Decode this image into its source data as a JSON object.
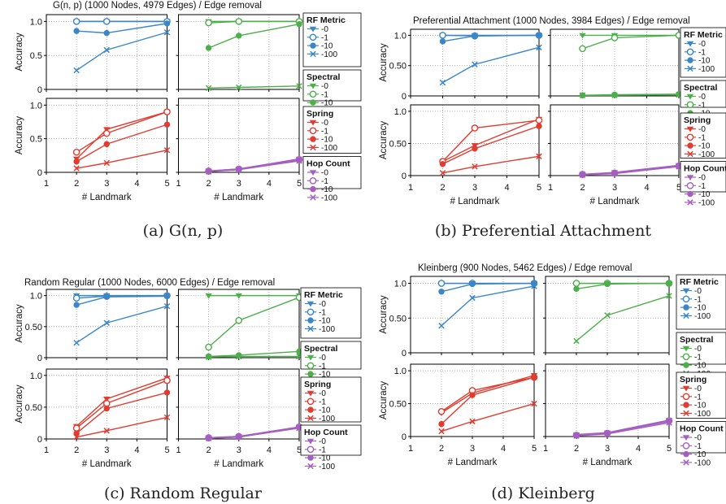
{
  "colors": {
    "rf": "#3a86c8",
    "spectral": "#4daf4a",
    "spring": "#e03c31",
    "hop": "#a55fc0",
    "grid": "#999999",
    "axis": "#000000"
  },
  "legend_groups": [
    {
      "title": "RF Metric",
      "color_key": "rf",
      "entries": [
        "-0",
        "-1",
        "-10",
        "-100"
      ]
    },
    {
      "title": "Spectral",
      "color_key": "spectral",
      "entries": [
        "-0",
        "-1",
        "-10",
        "-100"
      ]
    },
    {
      "title": "Spring",
      "color_key": "spring",
      "entries": [
        "-0",
        "-1",
        "-10",
        "-100"
      ]
    },
    {
      "title": "Hop Count",
      "color_key": "hop",
      "entries": [
        "-0",
        "-1",
        "-10",
        "-100"
      ]
    }
  ],
  "chart_data": [
    {
      "type": "line",
      "title": "G(n, p) (1000 Nodes, 4979 Edges) / Edge removal",
      "caption": "(a) G(n, p)",
      "xlabel": "# Landmark",
      "ylabel": "Accuracy",
      "xlim": [
        1,
        5
      ],
      "ylim": [
        0,
        1.1
      ],
      "xticks": [
        1,
        2,
        3,
        4,
        5
      ],
      "yticks": [
        "0",
        "0.5",
        "1.0"
      ],
      "x": [
        2,
        3,
        5
      ],
      "panels": {
        "rf": [
          [
            1.0,
            1.0,
            1.0
          ],
          [
            1.0,
            1.0,
            1.0
          ],
          [
            0.86,
            0.83,
            0.97
          ],
          [
            0.28,
            0.58,
            0.84
          ]
        ],
        "spectral": [
          [
            1.0,
            1.0,
            1.0
          ],
          [
            0.98,
            1.0,
            1.0
          ],
          [
            0.61,
            0.79,
            0.96
          ],
          [
            0.02,
            0.03,
            0.05
          ]
        ],
        "spring": [
          [
            0.2,
            0.64,
            0.9
          ],
          [
            0.3,
            0.58,
            0.9
          ],
          [
            0.16,
            0.42,
            0.71
          ],
          [
            0.06,
            0.14,
            0.33
          ]
        ],
        "hop": [
          [
            0.02,
            0.05,
            0.2
          ],
          [
            0.02,
            0.05,
            0.19
          ],
          [
            0.01,
            0.04,
            0.18
          ],
          [
            0.01,
            0.04,
            0.17
          ]
        ]
      }
    },
    {
      "type": "line",
      "title": "Preferential Attachment (1000 Nodes, 3984 Edges) / Edge removal",
      "caption": "(b) Preferential Attachment",
      "xlabel": "# Landmark",
      "ylabel": "Accuracy",
      "xlim": [
        1,
        5
      ],
      "ylim": [
        0,
        1.1
      ],
      "xticks": [
        1,
        2,
        3,
        4,
        5
      ],
      "yticks": [
        "0",
        "0.50",
        "1.0"
      ],
      "x": [
        2,
        3,
        5
      ],
      "panels": {
        "rf": [
          [
            1.0,
            1.0,
            1.0
          ],
          [
            1.0,
            0.99,
            1.0
          ],
          [
            0.9,
            0.99,
            1.0
          ],
          [
            0.22,
            0.52,
            0.8
          ]
        ],
        "spectral": [
          [
            1.0,
            1.0,
            1.0
          ],
          [
            0.78,
            0.96,
            1.0
          ],
          [
            0.01,
            0.02,
            0.03
          ],
          [
            0.01,
            0.01,
            0.02
          ]
        ],
        "spring": [
          [
            0.22,
            0.47,
            0.88
          ],
          [
            0.22,
            0.74,
            0.86
          ],
          [
            0.18,
            0.42,
            0.77
          ],
          [
            0.04,
            0.14,
            0.3
          ]
        ],
        "hop": [
          [
            0.02,
            0.05,
            0.16
          ],
          [
            0.02,
            0.04,
            0.15
          ],
          [
            0.01,
            0.04,
            0.15
          ],
          [
            0.01,
            0.03,
            0.14
          ]
        ]
      }
    },
    {
      "type": "line",
      "title": "Random Regular (1000 Nodes, 6000 Edges) / Edge removal",
      "caption": "(c) Random Regular",
      "xlabel": "# Landmark",
      "ylabel": "Accuracy",
      "xlim": [
        1,
        5
      ],
      "ylim": [
        0,
        1.1
      ],
      "xticks": [
        1,
        2,
        3,
        4,
        5
      ],
      "yticks": [
        "0",
        "0.50",
        "1.0"
      ],
      "x": [
        2,
        3,
        5
      ],
      "panels": {
        "rf": [
          [
            1.0,
            1.0,
            1.0
          ],
          [
            0.96,
            0.99,
            1.0
          ],
          [
            0.85,
            0.98,
            0.99
          ],
          [
            0.24,
            0.56,
            0.83
          ]
        ],
        "spectral": [
          [
            1.0,
            1.0,
            1.0
          ],
          [
            0.17,
            0.6,
            0.97
          ],
          [
            0.02,
            0.04,
            0.1
          ],
          [
            0.01,
            0.02,
            0.02
          ]
        ],
        "spring": [
          [
            0.2,
            0.63,
            0.96
          ],
          [
            0.17,
            0.56,
            0.92
          ],
          [
            0.09,
            0.48,
            0.73
          ],
          [
            0.03,
            0.13,
            0.34
          ]
        ],
        "hop": [
          [
            0.02,
            0.04,
            0.19
          ],
          [
            0.02,
            0.04,
            0.19
          ],
          [
            0.01,
            0.03,
            0.18
          ],
          [
            0.01,
            0.03,
            0.17
          ]
        ]
      }
    },
    {
      "type": "line",
      "title": "Kleinberg (900 Nodes, 5462 Edges) / Edge removal",
      "caption": "(d) Kleinberg",
      "xlabel": "# Landmark",
      "ylabel": "Accuracy",
      "xlim": [
        1,
        5
      ],
      "ylim": [
        0,
        1.1
      ],
      "xticks": [
        1,
        2,
        3,
        4,
        5
      ],
      "yticks": [
        "0",
        "0.50",
        "1.0"
      ],
      "x": [
        2,
        3,
        5
      ],
      "panels": {
        "rf": [
          [
            1.0,
            1.0,
            1.0
          ],
          [
            1.0,
            1.0,
            1.0
          ],
          [
            0.88,
            0.99,
            1.0
          ],
          [
            0.39,
            0.79,
            0.96
          ]
        ],
        "spectral": [
          [
            1.0,
            1.0,
            1.0
          ],
          [
            1.0,
            1.0,
            1.0
          ],
          [
            0.92,
            0.99,
            1.0
          ],
          [
            0.17,
            0.54,
            0.82
          ]
        ],
        "spring": [
          [
            0.36,
            0.66,
            0.93
          ],
          [
            0.38,
            0.7,
            0.9
          ],
          [
            0.19,
            0.63,
            0.9
          ],
          [
            0.08,
            0.23,
            0.5
          ]
        ],
        "hop": [
          [
            0.03,
            0.06,
            0.25
          ],
          [
            0.02,
            0.05,
            0.24
          ],
          [
            0.02,
            0.05,
            0.23
          ],
          [
            0.01,
            0.04,
            0.21
          ]
        ]
      }
    }
  ]
}
